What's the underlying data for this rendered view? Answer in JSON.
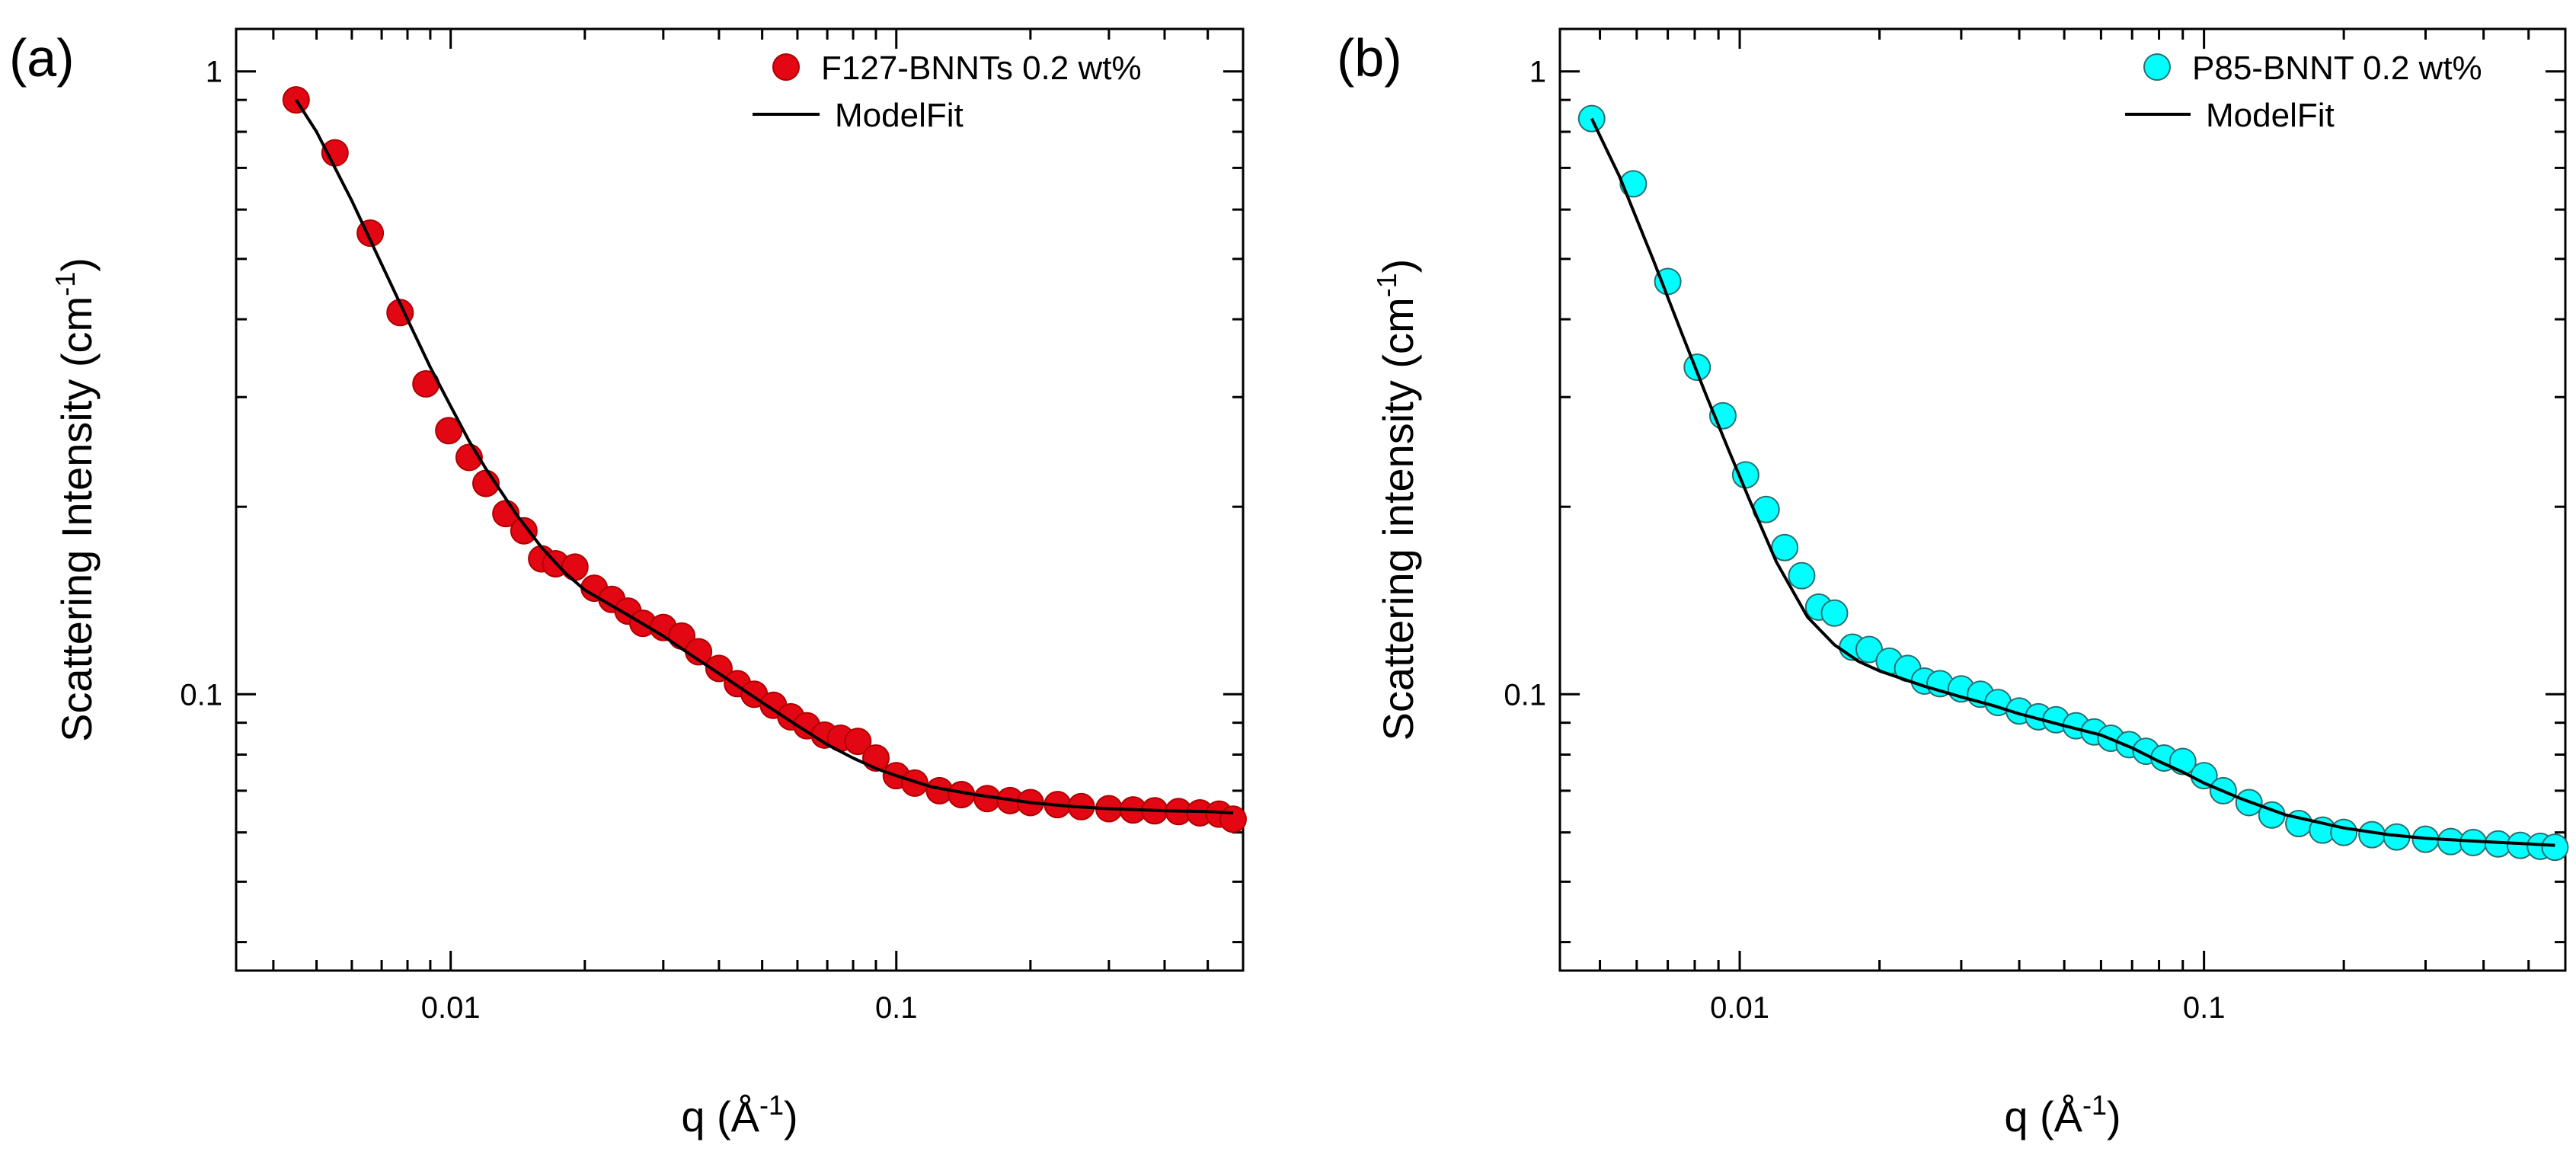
{
  "chart_data": [
    {
      "type": "scatter",
      "panel_label": "(a)",
      "ylabel": "Scattering Intensity (cm",
      "ylabel_sup": "-1",
      "ylabel_end": ")",
      "xlabel": "q (Å",
      "xlabel_sup": "-1",
      "xlabel_end": ")",
      "x_scale": "log",
      "y_scale": "log",
      "xlim": [
        0.0033,
        0.6
      ],
      "ylim": [
        0.036,
        1.17
      ],
      "x_ticks": [
        {
          "value": 0.01,
          "label": "0.01"
        },
        {
          "value": 0.1,
          "label": "0.1"
        }
      ],
      "y_ticks": [
        {
          "value": 0.1,
          "label": "0.1"
        },
        {
          "value": 1,
          "label": "1"
        }
      ],
      "grid": false,
      "legend_position": "top-right",
      "marker_color": "#e30613",
      "marker_edge": "#b00000",
      "series": [
        {
          "name": "F127-BNNTs 0.2 wt%",
          "kind": "markers",
          "x": [
            0.0045,
            0.0055,
            0.0066,
            0.0077,
            0.0088,
            0.0099,
            0.011,
            0.012,
            0.0133,
            0.0146,
            0.016,
            0.0172,
            0.019,
            0.021,
            0.023,
            0.025,
            0.027,
            0.03,
            0.033,
            0.036,
            0.04,
            0.044,
            0.048,
            0.053,
            0.058,
            0.063,
            0.069,
            0.075,
            0.082,
            0.09,
            0.1,
            0.11,
            0.125,
            0.14,
            0.16,
            0.18,
            0.2,
            0.23,
            0.26,
            0.3,
            0.34,
            0.38,
            0.43,
            0.48,
            0.53,
            0.57
          ],
          "y": [
            0.9,
            0.74,
            0.55,
            0.41,
            0.315,
            0.265,
            0.24,
            0.218,
            0.195,
            0.183,
            0.165,
            0.162,
            0.16,
            0.148,
            0.142,
            0.136,
            0.13,
            0.128,
            0.124,
            0.117,
            0.11,
            0.104,
            0.1,
            0.096,
            0.092,
            0.089,
            0.086,
            0.085,
            0.084,
            0.079,
            0.074,
            0.072,
            0.07,
            0.069,
            0.068,
            0.0675,
            0.067,
            0.0665,
            0.066,
            0.0655,
            0.0652,
            0.065,
            0.0648,
            0.0645,
            0.0642,
            0.063
          ]
        },
        {
          "name": "ModelFit",
          "kind": "line",
          "x": [
            0.0045,
            0.005,
            0.006,
            0.007,
            0.008,
            0.009,
            0.01,
            0.011,
            0.012,
            0.014,
            0.016,
            0.018,
            0.02,
            0.025,
            0.03,
            0.035,
            0.04,
            0.05,
            0.06,
            0.07,
            0.08,
            0.09,
            0.1,
            0.12,
            0.15,
            0.2,
            0.25,
            0.3,
            0.4,
            0.5,
            0.57
          ],
          "y": [
            0.9,
            0.8,
            0.62,
            0.49,
            0.4,
            0.335,
            0.29,
            0.255,
            0.23,
            0.195,
            0.172,
            0.157,
            0.147,
            0.134,
            0.124,
            0.115,
            0.108,
            0.097,
            0.089,
            0.083,
            0.079,
            0.076,
            0.074,
            0.071,
            0.069,
            0.067,
            0.066,
            0.0655,
            0.065,
            0.0648,
            0.0645
          ]
        }
      ]
    },
    {
      "type": "scatter",
      "panel_label": "(b)",
      "ylabel": "Scattering intensity (cm",
      "ylabel_sup": "-1",
      "ylabel_end": ")",
      "xlabel": "q (Å",
      "xlabel_sup": "-1",
      "xlabel_end": ")",
      "x_scale": "log",
      "y_scale": "log",
      "xlim": [
        0.0041,
        0.6
      ],
      "ylim": [
        0.036,
        1.17
      ],
      "x_ticks": [
        {
          "value": 0.01,
          "label": "0.01"
        },
        {
          "value": 0.1,
          "label": "0.1"
        }
      ],
      "y_ticks": [
        {
          "value": 0.1,
          "label": "0.1"
        },
        {
          "value": 1,
          "label": "1"
        }
      ],
      "grid": false,
      "legend_position": "top-right",
      "marker_color": "#00ffff",
      "marker_edge": "#2a6e6e",
      "series": [
        {
          "name": "P85-BNNT 0.2 wt%",
          "kind": "markers",
          "x": [
            0.0048,
            0.0059,
            0.007,
            0.0081,
            0.0092,
            0.0103,
            0.0114,
            0.0125,
            0.0136,
            0.0148,
            0.016,
            0.0175,
            0.019,
            0.021,
            0.023,
            0.025,
            0.027,
            0.03,
            0.033,
            0.036,
            0.04,
            0.044,
            0.048,
            0.053,
            0.058,
            0.063,
            0.069,
            0.075,
            0.082,
            0.09,
            0.1,
            0.11,
            0.125,
            0.14,
            0.16,
            0.18,
            0.2,
            0.23,
            0.26,
            0.3,
            0.34,
            0.38,
            0.43,
            0.48,
            0.53,
            0.57
          ],
          "y": [
            0.84,
            0.66,
            0.46,
            0.335,
            0.28,
            0.225,
            0.198,
            0.172,
            0.155,
            0.138,
            0.135,
            0.119,
            0.118,
            0.113,
            0.11,
            0.105,
            0.104,
            0.102,
            0.1,
            0.097,
            0.094,
            0.092,
            0.091,
            0.089,
            0.087,
            0.085,
            0.083,
            0.081,
            0.079,
            0.078,
            0.074,
            0.07,
            0.067,
            0.064,
            0.062,
            0.0605,
            0.06,
            0.0595,
            0.059,
            0.0585,
            0.058,
            0.0578,
            0.0575,
            0.0572,
            0.057,
            0.0568
          ]
        },
        {
          "name": "ModelFit",
          "kind": "line",
          "x": [
            0.0048,
            0.0055,
            0.0065,
            0.0075,
            0.0085,
            0.0095,
            0.0105,
            0.012,
            0.014,
            0.016,
            0.018,
            0.02,
            0.025,
            0.03,
            0.035,
            0.04,
            0.05,
            0.06,
            0.07,
            0.08,
            0.09,
            0.1,
            0.12,
            0.15,
            0.2,
            0.25,
            0.3,
            0.4,
            0.5,
            0.57
          ],
          "y": [
            0.84,
            0.68,
            0.5,
            0.38,
            0.3,
            0.245,
            0.205,
            0.163,
            0.133,
            0.12,
            0.113,
            0.109,
            0.103,
            0.099,
            0.096,
            0.093,
            0.089,
            0.086,
            0.082,
            0.078,
            0.075,
            0.072,
            0.068,
            0.064,
            0.061,
            0.0595,
            0.0587,
            0.058,
            0.0575,
            0.0572
          ]
        }
      ]
    }
  ]
}
